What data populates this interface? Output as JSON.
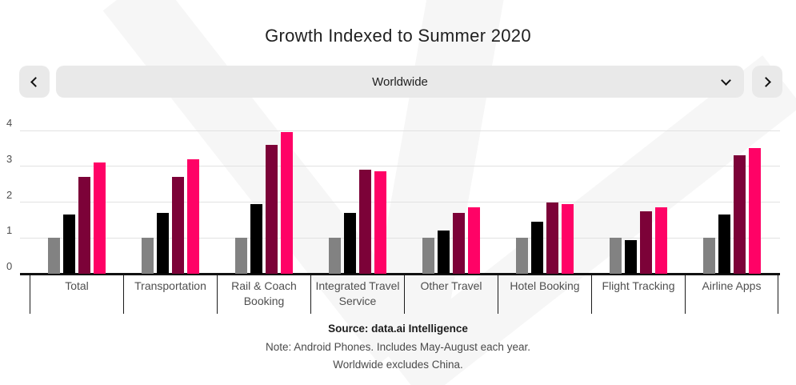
{
  "header": {
    "title": "Growth Indexed to Summer 2020"
  },
  "controls": {
    "prev_icon": "chevron-left-icon",
    "next_icon": "chevron-right-icon",
    "dropdown": {
      "value": "Worldwide",
      "icon": "chevron-down-icon"
    }
  },
  "chart_data": {
    "type": "bar",
    "title": "Growth Indexed to Summer 2020",
    "categories": [
      "Total",
      "Transportation",
      "Rail & Coach Booking",
      "Integrated Travel Service",
      "Other Travel",
      "Hotel Booking",
      "Flight Tracking",
      "Airline Apps"
    ],
    "series": [
      {
        "name": "gray",
        "color": "#828282",
        "values": [
          1.0,
          1.0,
          1.0,
          1.0,
          1.0,
          1.0,
          1.0,
          1.0
        ]
      },
      {
        "name": "black",
        "color": "#000000",
        "values": [
          1.65,
          1.7,
          1.95,
          1.7,
          1.2,
          1.45,
          0.95,
          1.65
        ]
      },
      {
        "name": "burgundy",
        "color": "#7c0238",
        "values": [
          2.7,
          2.7,
          3.6,
          2.9,
          1.7,
          2.0,
          1.75,
          3.3
        ]
      },
      {
        "name": "pink",
        "color": "#ff0266",
        "values": [
          3.1,
          3.2,
          3.95,
          2.85,
          1.85,
          1.95,
          1.85,
          3.5
        ]
      }
    ],
    "xlabel": "",
    "ylabel": "",
    "ylim": [
      0,
      4
    ],
    "yticks": [
      0,
      1,
      2,
      3,
      4
    ],
    "grid": true,
    "legend": "none"
  },
  "footer": {
    "source": "Source: data.ai Intelligence",
    "note1": "Note: Android Phones. Includes May-August each year.",
    "note2": "Worldwide excludes China."
  },
  "colors": {
    "bar_gray": "#828282",
    "bar_black": "#000000",
    "bar_burgundy": "#7c0238",
    "bar_pink": "#ff0266",
    "control_bg": "#e9e9e9",
    "gridline": "#e2e2e2",
    "watermark": "#f6f6f6"
  }
}
